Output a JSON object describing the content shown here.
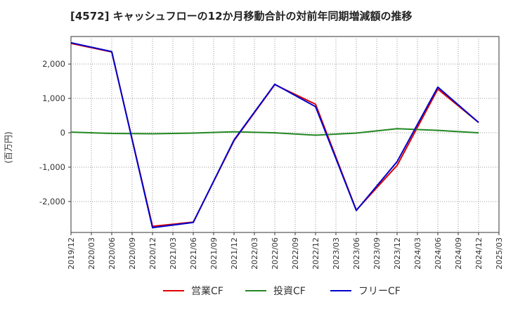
{
  "chart_data": {
    "type": "line",
    "title": "[4572]  キャッシュフローの12か月移動合計の対前年同期増減額の推移",
    "ylabel": "(百万円)",
    "xlabel": "",
    "ylim": [
      -2900,
      2800
    ],
    "yticks": [
      -2000,
      -1000,
      0,
      1000,
      2000
    ],
    "ytick_labels": [
      "-2,000",
      "-1,000",
      "0",
      "1,000",
      "2,000"
    ],
    "x_ticks": [
      "2019/12",
      "2020/03",
      "2020/06",
      "2020/09",
      "2020/12",
      "2021/03",
      "2021/06",
      "2021/09",
      "2021/12",
      "2022/03",
      "2022/06",
      "2022/09",
      "2022/12",
      "2023/03",
      "2023/06",
      "2023/09",
      "2023/12",
      "2024/03",
      "2024/06",
      "2024/09",
      "2024/12",
      "2025/03"
    ],
    "grid": true,
    "legend_position": "bottom",
    "series": [
      {
        "name": "営業CF",
        "color": "#dd0000",
        "x": [
          "2019/12",
          "2020/06",
          "2020/12",
          "2021/06",
          "2021/12",
          "2022/06",
          "2022/12",
          "2023/06",
          "2023/12",
          "2024/06",
          "2024/12"
        ],
        "values": [
          2600,
          2350,
          -2720,
          -2600,
          -230,
          1400,
          830,
          -2250,
          -950,
          1270,
          300
        ]
      },
      {
        "name": "投資CF",
        "color": "#228822",
        "x": [
          "2019/12",
          "2020/06",
          "2020/12",
          "2021/06",
          "2021/12",
          "2022/06",
          "2022/12",
          "2023/06",
          "2023/12",
          "2024/06",
          "2024/12"
        ],
        "values": [
          20,
          -20,
          -30,
          -10,
          30,
          0,
          -70,
          -10,
          120,
          70,
          0
        ]
      },
      {
        "name": "フリーCF",
        "color": "#0000cc",
        "x": [
          "2019/12",
          "2020/06",
          "2020/12",
          "2021/06",
          "2021/12",
          "2022/06",
          "2022/12",
          "2023/06",
          "2023/12",
          "2024/06",
          "2024/12"
        ],
        "values": [
          2620,
          2360,
          -2760,
          -2610,
          -210,
          1410,
          760,
          -2260,
          -840,
          1330,
          300
        ]
      }
    ]
  }
}
